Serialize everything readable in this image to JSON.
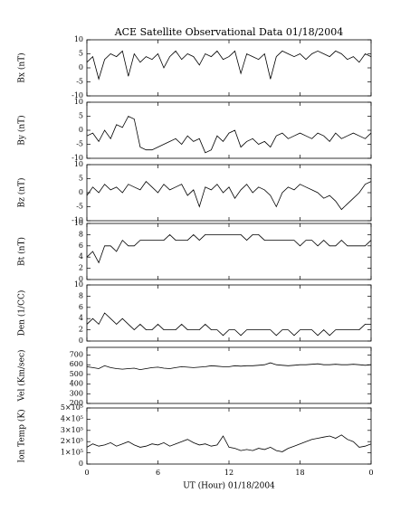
{
  "chart_data": {
    "type": "line",
    "title": "ACE Satellite Observational Data   01/18/2004",
    "xlabel": "UT (Hour)   01/18/2004",
    "x": [
      0,
      0.5,
      1,
      1.5,
      2,
      2.5,
      3,
      3.5,
      4,
      4.5,
      5,
      5.5,
      6,
      6.5,
      7,
      7.5,
      8,
      8.5,
      9,
      9.5,
      10,
      10.5,
      11,
      11.5,
      12,
      12.5,
      13,
      13.5,
      14,
      14.5,
      15,
      15.5,
      16,
      16.5,
      17,
      17.5,
      18,
      18.5,
      19,
      19.5,
      20,
      20.5,
      21,
      21.5,
      22,
      22.5,
      23,
      23.5,
      24
    ],
    "xlim": [
      0,
      24
    ],
    "xticks": [
      0,
      6,
      12,
      18,
      {
        "value": 24,
        "label": "0"
      }
    ],
    "color": "#000000",
    "panels": [
      {
        "ylabel": "Bx (nT)",
        "ylim": [
          -10,
          10
        ],
        "yticks": [
          -10,
          -5,
          0,
          5,
          10
        ],
        "values": [
          2,
          4,
          -4,
          3,
          5,
          4,
          6,
          -3,
          5,
          2,
          4,
          3,
          5,
          0,
          4,
          6,
          3,
          5,
          4,
          1,
          5,
          4,
          6,
          3,
          4,
          6,
          -2,
          5,
          4,
          3,
          5,
          -4,
          4,
          6,
          5,
          4,
          5,
          3,
          5,
          6,
          5,
          4,
          6,
          5,
          3,
          4,
          2,
          5,
          4
        ]
      },
      {
        "ylabel": "By (nT)",
        "ylim": [
          -10,
          10
        ],
        "yticks": [
          -10,
          -5,
          0,
          5,
          10
        ],
        "values": [
          -2,
          -1,
          -4,
          0,
          -3,
          2,
          1,
          5,
          4,
          -6,
          -7,
          -7,
          -6,
          -5,
          -4,
          -3,
          -5,
          -2,
          -4,
          -3,
          -8,
          -7,
          -2,
          -4,
          -1,
          0,
          -6,
          -4,
          -3,
          -5,
          -4,
          -6,
          -2,
          -1,
          -3,
          -2,
          -1,
          -2,
          -3,
          -1,
          -2,
          -4,
          -1,
          -3,
          -2,
          -1,
          -2,
          -3,
          -1
        ]
      },
      {
        "ylabel": "Bz (nT)",
        "ylim": [
          -10,
          10
        ],
        "yticks": [
          -10,
          -5,
          0,
          5,
          10
        ],
        "values": [
          -1,
          2,
          0,
          3,
          1,
          2,
          0,
          3,
          2,
          1,
          4,
          2,
          0,
          3,
          1,
          2,
          3,
          -1,
          1,
          -5,
          2,
          1,
          3,
          0,
          2,
          -2,
          1,
          3,
          0,
          2,
          1,
          -1,
          -5,
          0,
          2,
          1,
          3,
          2,
          1,
          0,
          -2,
          -1,
          -3,
          -6,
          -4,
          -2,
          0,
          3,
          4
        ]
      },
      {
        "ylabel": "Bt (nT)",
        "ylim": [
          0,
          10
        ],
        "yticks": [
          0,
          2,
          4,
          6,
          8,
          10
        ],
        "values": [
          4,
          5,
          3,
          6,
          6,
          5,
          7,
          6,
          6,
          7,
          7,
          7,
          7,
          7,
          8,
          7,
          7,
          7,
          8,
          7,
          8,
          8,
          8,
          8,
          8,
          8,
          8,
          7,
          8,
          8,
          7,
          7,
          7,
          7,
          7,
          7,
          6,
          7,
          7,
          6,
          7,
          6,
          6,
          7,
          6,
          6,
          6,
          6,
          7
        ]
      },
      {
        "ylabel": "Den (1/CC)",
        "ylim": [
          0,
          10
        ],
        "yticks": [
          0,
          2,
          4,
          6,
          8,
          10
        ],
        "values": [
          3,
          4,
          3,
          5,
          4,
          3,
          4,
          3,
          2,
          3,
          2,
          2,
          3,
          2,
          2,
          2,
          3,
          2,
          2,
          2,
          3,
          2,
          2,
          1,
          2,
          2,
          1,
          2,
          2,
          2,
          2,
          2,
          1,
          2,
          2,
          1,
          2,
          2,
          2,
          1,
          2,
          1,
          2,
          2,
          2,
          2,
          2,
          3,
          3
        ]
      },
      {
        "ylabel": "Vel (Km/sec)",
        "ylim": [
          200,
          780
        ],
        "yticks": [
          200,
          300,
          400,
          500,
          600,
          700
        ],
        "values": [
          580,
          570,
          560,
          590,
          570,
          560,
          555,
          560,
          565,
          550,
          560,
          570,
          575,
          565,
          560,
          570,
          580,
          575,
          570,
          575,
          580,
          590,
          585,
          580,
          580,
          590,
          585,
          590,
          590,
          595,
          600,
          620,
          600,
          595,
          590,
          595,
          600,
          600,
          605,
          610,
          600,
          600,
          605,
          600,
          600,
          605,
          600,
          595,
          600
        ]
      },
      {
        "ylabel": "Ion Temp (K)",
        "ylim": [
          0,
          500000
        ],
        "yticks": [
          0,
          {
            "value": 100000,
            "label": "1×10⁵"
          },
          {
            "value": 200000,
            "label": "2×10⁵"
          },
          {
            "value": 300000,
            "label": "3×10⁵"
          },
          {
            "value": 400000,
            "label": "4×10⁵"
          },
          {
            "value": 500000,
            "label": "5×10⁵"
          }
        ],
        "values": [
          150000,
          180000,
          160000,
          170000,
          190000,
          160000,
          180000,
          200000,
          170000,
          150000,
          160000,
          180000,
          170000,
          190000,
          160000,
          180000,
          200000,
          220000,
          190000,
          170000,
          180000,
          160000,
          170000,
          250000,
          150000,
          140000,
          120000,
          130000,
          120000,
          140000,
          130000,
          150000,
          120000,
          110000,
          140000,
          160000,
          180000,
          200000,
          220000,
          230000,
          240000,
          250000,
          230000,
          260000,
          220000,
          200000,
          150000,
          160000,
          180000
        ]
      }
    ]
  }
}
